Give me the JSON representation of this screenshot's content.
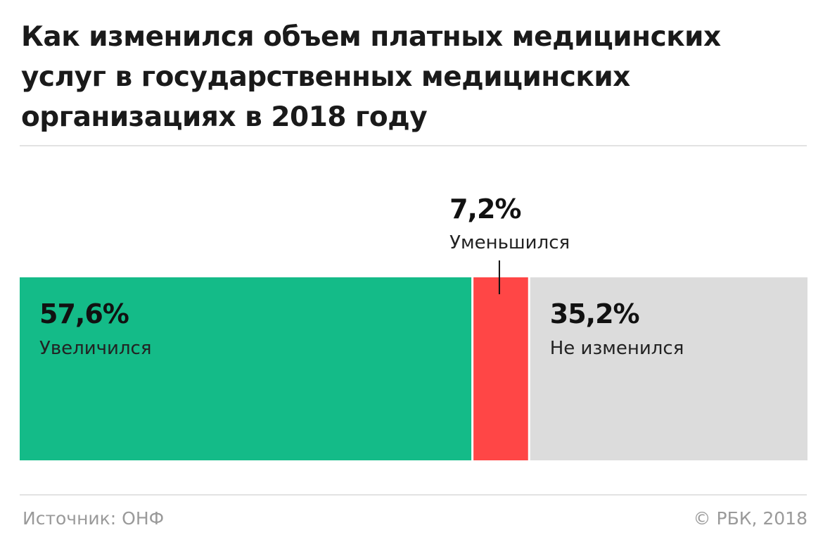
{
  "title": "Как изменился объем платных медицинских\nуслуг в государственных  медицинских\nорганизациях в 2018 году",
  "chart_data": {
    "type": "bar",
    "orientation": "horizontal-stacked-100",
    "title": "Как изменился объем платных медицинских услуг в государственных  медицинских организациях в 2018 году",
    "categories": [
      "Увеличился",
      "Уменьшился",
      "Не изменился"
    ],
    "values": [
      57.6,
      7.2,
      35.2
    ],
    "value_labels": [
      "57,6%",
      "7,2%",
      "35,2%"
    ],
    "unit": "%",
    "colors": [
      "#14bb88",
      "#ff4646",
      "#dcdcdc"
    ],
    "small_segment_label_placement": "above-with-leader-line"
  },
  "footer": {
    "source": "Источник: ОНФ",
    "copyright": "© РБК, 2018"
  }
}
